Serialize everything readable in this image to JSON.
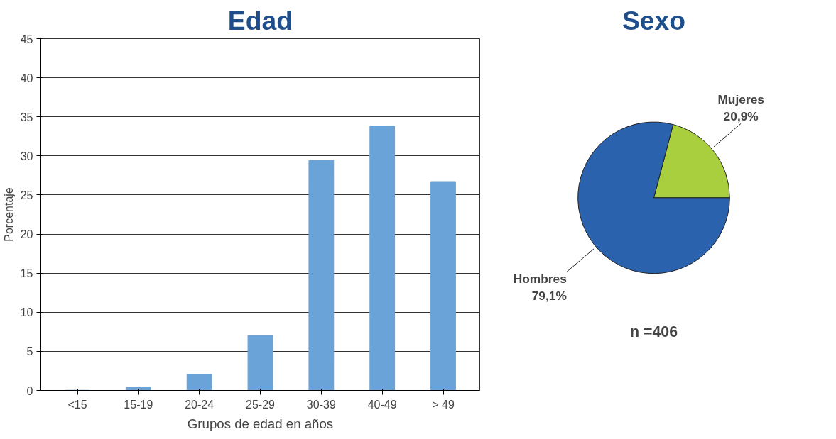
{
  "chart_data": [
    {
      "type": "bar",
      "title": "Edad",
      "xlabel": "Grupos de edad en años",
      "ylabel": "Porcentaje",
      "categories": [
        "<15",
        "15-19",
        "20-24",
        "25-29",
        "30-39",
        "40-49",
        "> 49"
      ],
      "values": [
        0,
        0.4,
        2.0,
        7.0,
        29.4,
        33.8,
        26.7
      ],
      "color": "#6aa3d8",
      "ylim": [
        0,
        45
      ],
      "yticks": [
        0,
        5,
        10,
        15,
        20,
        25,
        30,
        35,
        40,
        45
      ],
      "grid": "y"
    },
    {
      "type": "pie",
      "title": "Sexo",
      "categories": [
        "Hombres",
        "Mujeres"
      ],
      "values": [
        79.1,
        20.9
      ],
      "colors": [
        "#2b62ad",
        "#a9cf3e"
      ],
      "value_labels": [
        "79,1%",
        "20,9%"
      ],
      "annotations": [
        "n =406"
      ]
    }
  ]
}
